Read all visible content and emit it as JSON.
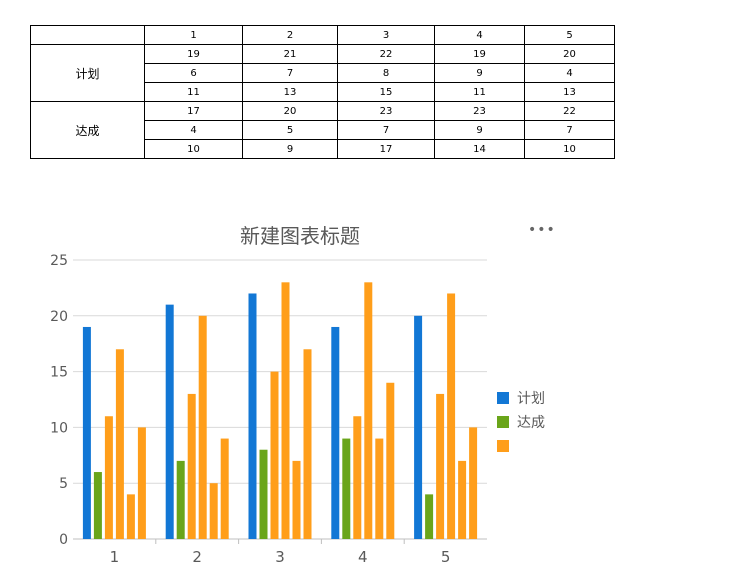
{
  "table": {
    "header": [
      "",
      "1",
      "2",
      "3",
      "4",
      "5"
    ],
    "groups": [
      {
        "label": "计划",
        "rows": [
          [
            "19",
            "21",
            "22",
            "19",
            "20"
          ],
          [
            "6",
            "7",
            "8",
            "9",
            "4"
          ],
          [
            "11",
            "13",
            "15",
            "11",
            "13"
          ]
        ]
      },
      {
        "label": "达成",
        "rows": [
          [
            "17",
            "20",
            "23",
            "23",
            "22"
          ],
          [
            "4",
            "5",
            "7",
            "9",
            "7"
          ],
          [
            "10",
            "9",
            "17",
            "14",
            "10"
          ]
        ]
      }
    ]
  },
  "chart_data": {
    "type": "bar",
    "title": "新建图表标题",
    "categories": [
      "1",
      "2",
      "3",
      "4",
      "5"
    ],
    "ylim": [
      0,
      25
    ],
    "yticks": [
      0,
      5,
      10,
      15,
      20,
      25
    ],
    "grid": true,
    "legend_position": "right",
    "series": [
      {
        "name": "计划",
        "color": "#1277d5",
        "values": [
          19,
          21,
          22,
          19,
          20
        ]
      },
      {
        "name": "达成",
        "color": "#6aa51a",
        "values": [
          6,
          7,
          8,
          9,
          4
        ]
      },
      {
        "name": "",
        "color": "#ff9e1a",
        "values": [
          11,
          13,
          15,
          11,
          13
        ]
      },
      {
        "name": "",
        "color": "#ff9e1a",
        "values": [
          17,
          20,
          23,
          23,
          22
        ]
      },
      {
        "name": "",
        "color": "#ff9e1a",
        "values": [
          4,
          5,
          7,
          9,
          7
        ]
      },
      {
        "name": "",
        "color": "#ff9e1a",
        "values": [
          10,
          9,
          17,
          14,
          10
        ]
      }
    ]
  },
  "menu_icon": "more-horizontal-icon",
  "legend": [
    {
      "label": "计划",
      "color": "#1277d5"
    },
    {
      "label": "达成",
      "color": "#6aa51a"
    },
    {
      "label": "",
      "color": "#ff9e1a"
    }
  ]
}
